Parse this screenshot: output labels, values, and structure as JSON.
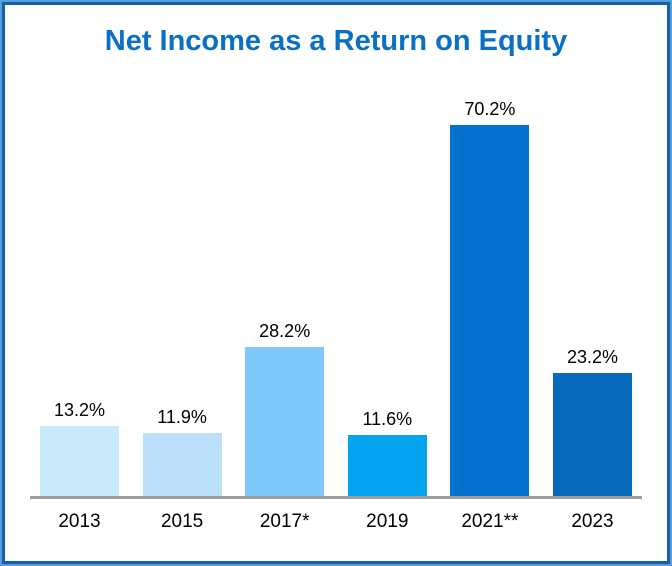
{
  "title": "Net Income as a Return on Equity",
  "colors": {
    "title_text": "#0a70c6",
    "frame_border_outer": "#5e9bd2",
    "frame_border_inner": "#1261b0",
    "axis_line": "#9e9e9e",
    "label_text": "#000000",
    "background": "#ffffff"
  },
  "chart_data": {
    "type": "bar",
    "title": "Net Income as a Return on Equity",
    "categories": [
      "2013",
      "2015",
      "2017*",
      "2019",
      "2021**",
      "2023"
    ],
    "values": [
      13.2,
      11.9,
      28.2,
      11.6,
      70.2,
      23.2
    ],
    "value_labels": [
      "13.2%",
      "11.9%",
      "28.2%",
      "11.6%",
      "70.2%",
      "23.2%"
    ],
    "bar_colors": [
      "#c9eafb",
      "#bce0f9",
      "#7ec8fa",
      "#06a3f0",
      "#0571cf",
      "#0769ba"
    ],
    "xlabel": "",
    "ylabel": "",
    "ylim": [
      0,
      75
    ],
    "grid": false,
    "legend": null,
    "units": "percent"
  }
}
